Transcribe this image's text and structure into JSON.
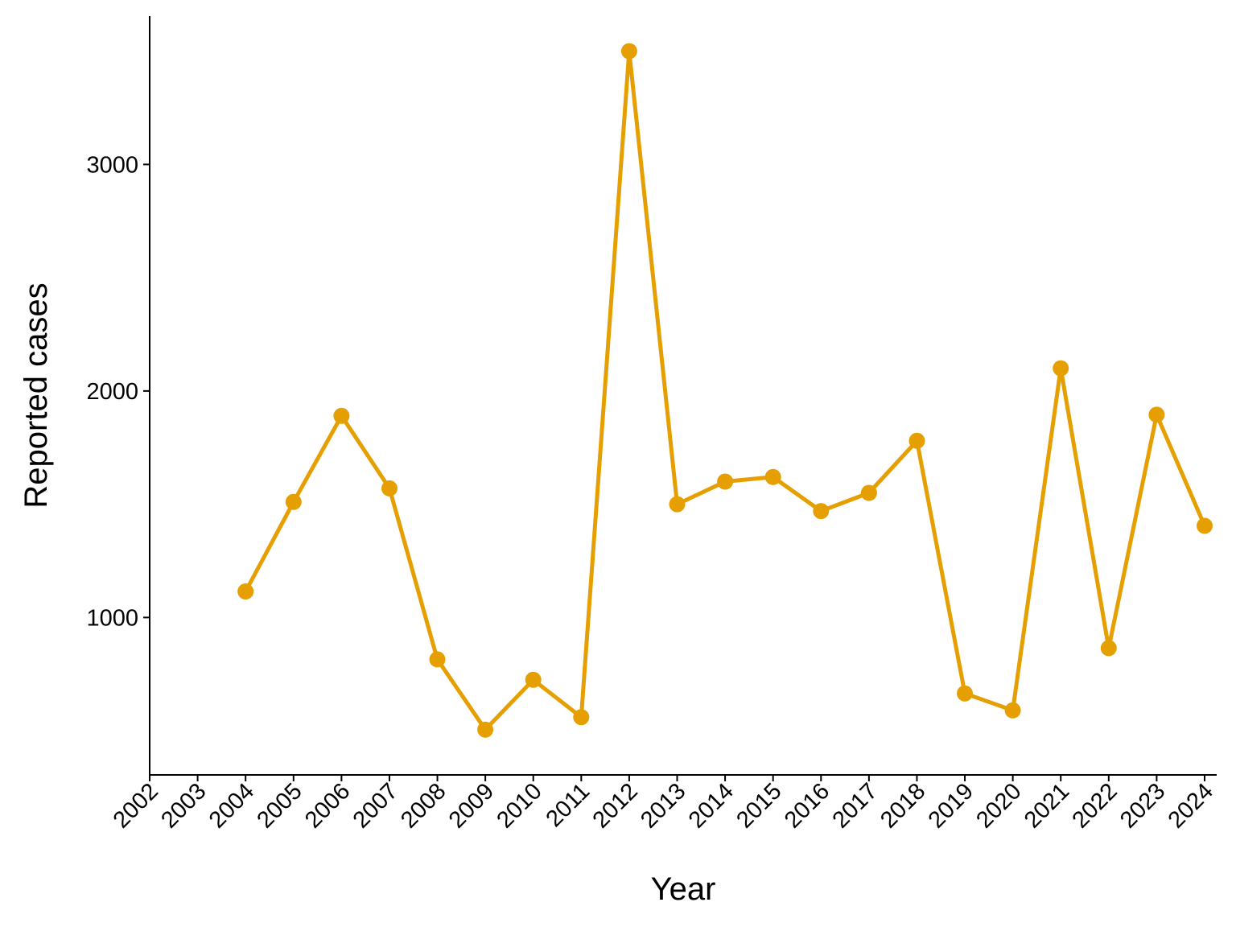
{
  "chart_data": {
    "type": "line",
    "title": "",
    "xlabel": "Year",
    "ylabel": "Reported cases",
    "x_categories": [
      "2002",
      "2003",
      "2004",
      "2005",
      "2006",
      "2007",
      "2008",
      "2009",
      "2010",
      "2011",
      "2012",
      "2013",
      "2014",
      "2015",
      "2016",
      "2017",
      "2018",
      "2019",
      "2020",
      "2021",
      "2022",
      "2023",
      "2024"
    ],
    "y_ticks": [
      1000,
      2000,
      3000
    ],
    "ylim": [
      305,
      3655
    ],
    "grid": false,
    "legend": "none",
    "series": [
      {
        "color": "#E69F00",
        "x": [
          "2004",
          "2005",
          "2006",
          "2007",
          "2008",
          "2009",
          "2010",
          "2011",
          "2012",
          "2013",
          "2014",
          "2015",
          "2016",
          "2017",
          "2018",
          "2019",
          "2020",
          "2021",
          "2022",
          "2023",
          "2024"
        ],
        "values": [
          1115,
          1510,
          1890,
          1570,
          815,
          505,
          725,
          560,
          3500,
          1500,
          1600,
          1620,
          1470,
          1550,
          1780,
          665,
          590,
          2100,
          865,
          1895,
          1405
        ]
      }
    ]
  }
}
